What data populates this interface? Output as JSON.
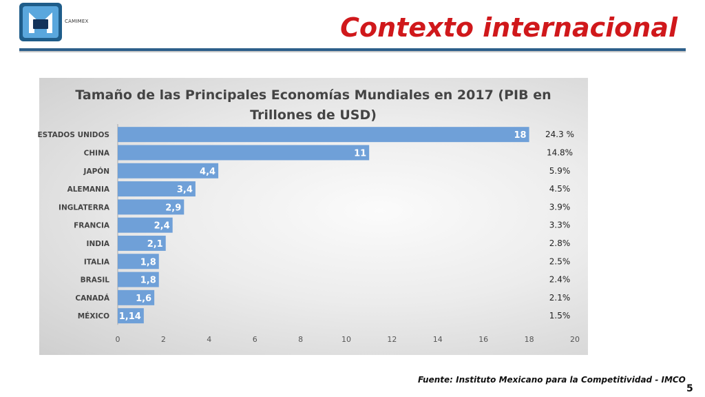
{
  "header": {
    "logo_text": "CAMIMEX",
    "title": "Contexto internacional"
  },
  "footer": {
    "source": "Fuente: Instituto Mexicano para la Competitividad - IMCO",
    "page_number": "5"
  },
  "colors": {
    "bar": "#6fa0d8",
    "title": "#d0181b",
    "rule": "#2d5f8a"
  },
  "chart_data": {
    "type": "bar",
    "orientation": "horizontal",
    "title_lines": [
      "Tamaño de las Principales Economías Mundiales en 2017 (PIB en",
      "Trillones de USD)"
    ],
    "categories": [
      "ESTADOS UNIDOS",
      "CHINA",
      "JAPÓN",
      "ALEMANIA",
      "INGLATERRA",
      "FRANCIA",
      "INDIA",
      "ITALIA",
      "BRASIL",
      "CANADÁ",
      "MÉXICO"
    ],
    "values": [
      18,
      11,
      4.4,
      3.4,
      2.9,
      2.4,
      2.1,
      1.8,
      1.8,
      1.6,
      1.14
    ],
    "value_labels": [
      "18",
      "11",
      "4,4",
      "3,4",
      "2,9",
      "2,4",
      "2,1",
      "1,8",
      "1,8",
      "1,6",
      "1,14"
    ],
    "percent_labels": [
      "24.3 %",
      "14.8%",
      "5.9%",
      "4.5%",
      "3.9%",
      "3.3%",
      "2.8%",
      "2.5%",
      "2.4%",
      "2.1%",
      "1.5%"
    ],
    "xlim": [
      0,
      20
    ],
    "xticks": [
      0,
      2,
      4,
      6,
      8,
      10,
      12,
      14,
      16,
      18,
      20
    ],
    "grid": false,
    "legend": "none"
  }
}
